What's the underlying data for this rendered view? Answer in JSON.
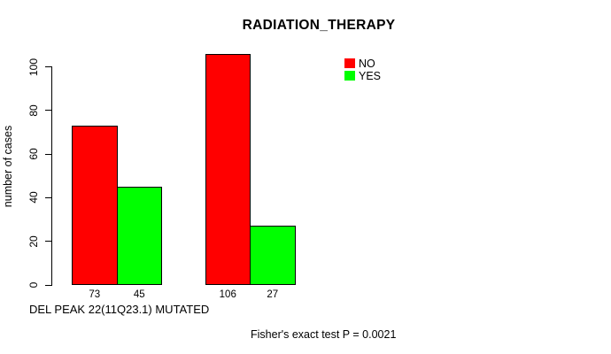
{
  "chart_data": {
    "type": "bar",
    "title": "RADIATION_THERAPY",
    "ylabel": "number of cases",
    "xlabel": "DEL PEAK 22(11Q23.1) MUTATED",
    "annotation": "Fisher's exact test P = 0.0021",
    "yticks": [
      0,
      20,
      40,
      60,
      80,
      100
    ],
    "ylim": [
      0,
      110
    ],
    "grid": false,
    "legend_position": "top-right",
    "background_color": "#FFFFFF",
    "bar_border_color": "#000000",
    "series": [
      {
        "name": "NO",
        "color": "#FF0000",
        "values": [
          73,
          106
        ]
      },
      {
        "name": "YES",
        "color": "#00FF00",
        "values": [
          45,
          27
        ]
      }
    ],
    "bar_value_labels": [
      "73",
      "45",
      "106",
      "27"
    ]
  }
}
